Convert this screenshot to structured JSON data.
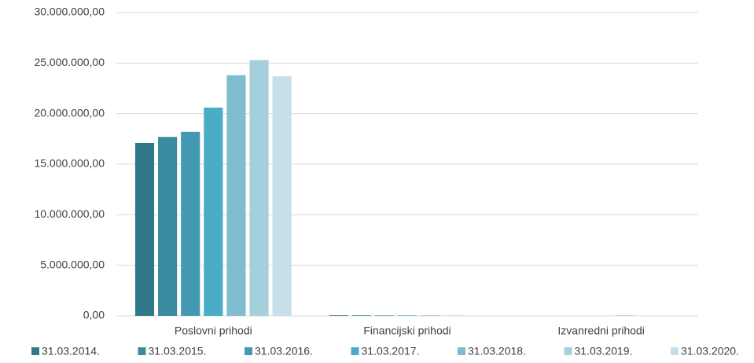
{
  "chart_data": {
    "type": "bar",
    "categories": [
      "Poslovni prihodi",
      "Financijski prihodi",
      "Izvanredni prihodi"
    ],
    "series": [
      {
        "name": "31.03.2014.",
        "color": "#31788a",
        "values": [
          17100000,
          60000,
          0
        ]
      },
      {
        "name": "31.03.2015.",
        "color": "#3a8aa0",
        "values": [
          17700000,
          60000,
          0
        ]
      },
      {
        "name": "31.03.2016.",
        "color": "#4499b2",
        "values": [
          18200000,
          50000,
          0
        ]
      },
      {
        "name": "31.03.2017.",
        "color": "#4bacc6",
        "values": [
          20600000,
          50000,
          0
        ]
      },
      {
        "name": "31.03.2018.",
        "color": "#7fbcd0",
        "values": [
          23800000,
          50000,
          40000
        ]
      },
      {
        "name": "31.03.2019.",
        "color": "#a6cfdc",
        "values": [
          25300000,
          40000,
          0
        ]
      },
      {
        "name": "31.03.2020.",
        "color": "#c6dfe8",
        "values": [
          23700000,
          30000,
          0
        ]
      }
    ],
    "ylim": [
      0,
      30000000
    ],
    "yticks": [
      {
        "value": 0,
        "label": "0,00"
      },
      {
        "value": 5000000,
        "label": "5.000.000,00"
      },
      {
        "value": 10000000,
        "label": "10.000.000,00"
      },
      {
        "value": 15000000,
        "label": "15.000.000,00"
      },
      {
        "value": 20000000,
        "label": "20.000.000,00"
      },
      {
        "value": 25000000,
        "label": "25.000.000,00"
      },
      {
        "value": 30000000,
        "label": "30.000.000,00"
      }
    ],
    "grid": true,
    "legend": "bottom"
  }
}
